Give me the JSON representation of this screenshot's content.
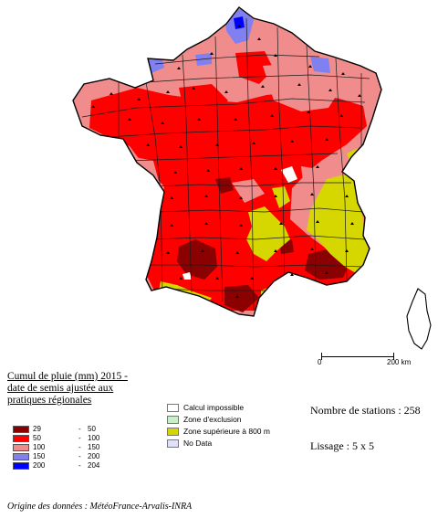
{
  "legend": {
    "title": "Cumul de pluie (mm) 2015 - date de semis ajustée aux pratiques régionales",
    "classes": [
      {
        "from": "29",
        "to": "50",
        "color": "#8b0000"
      },
      {
        "from": "50",
        "to": "100",
        "color": "#ff0000"
      },
      {
        "from": "100",
        "to": "150",
        "color": "#f08c8c"
      },
      {
        "from": "150",
        "to": "200",
        "color": "#8080f0"
      },
      {
        "from": "200",
        "to": "204",
        "color": "#0000ff"
      }
    ]
  },
  "zones": [
    {
      "label": "Calcul impossible",
      "color": "#ffffff"
    },
    {
      "label": "Zone d'exclusion",
      "color": "#c8f0c8"
    },
    {
      "label": "Zone supérieure à 800 m",
      "color": "#d6d600"
    },
    {
      "label": "No Data",
      "color": "#e0e0f8"
    }
  ],
  "scale": {
    "zero": "0",
    "max": "200 km"
  },
  "info": {
    "stations": "Nombre de stations : 258",
    "lissage": "Lissage : 5 x 5"
  },
  "source": "Origine des données : MétéoFrance-Arvalis-INRA",
  "colors": {
    "dark_red": "#8b0000",
    "red": "#ff0000",
    "pink": "#f08c8c",
    "lavender": "#8080f0",
    "blue": "#0000ff",
    "yellow": "#d6d600",
    "border": "#1a1a1a"
  }
}
